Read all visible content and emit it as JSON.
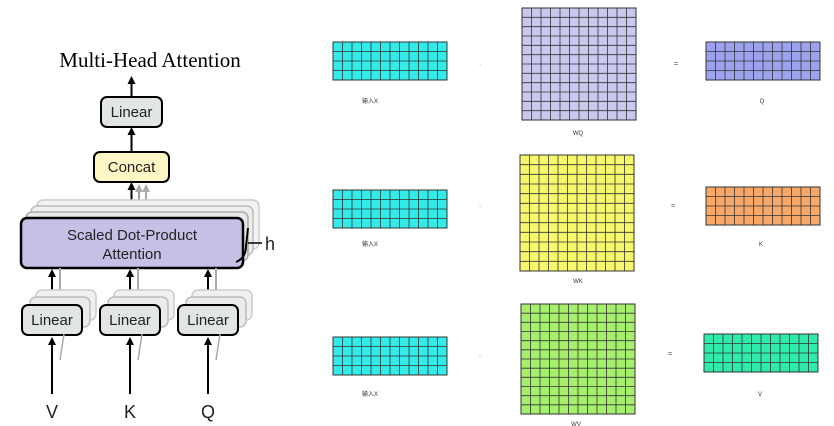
{
  "attention": {
    "title": "Multi-Head Attention",
    "linear_top": "Linear",
    "concat": "Concat",
    "sdpa_line1": "Scaled Dot-Product",
    "sdpa_line2": "Attention",
    "h": "h",
    "linear_v": "Linear",
    "linear_k": "Linear",
    "linear_q": "Linear",
    "input_v": "V",
    "input_k": "K",
    "input_q": "Q"
  },
  "matrices": {
    "colors": {
      "input": "#33ecea",
      "wq": "#c9c8ee",
      "q": "#9da2ee",
      "wk": "#f6f76a",
      "k": "#f7a869",
      "wv": "#a5ef6c",
      "v": "#2feba9"
    },
    "rows": [
      {
        "input_label": "输入X",
        "dot": "·",
        "weight_label": "WQ",
        "equals": "=",
        "output_label": "Q"
      },
      {
        "input_label": "输入X",
        "dot": "·",
        "weight_label": "WK",
        "equals": "=",
        "output_label": "K"
      },
      {
        "input_label": "输入X",
        "dot": "·",
        "weight_label": "WV",
        "equals": "=",
        "output_label": "V"
      }
    ]
  }
}
